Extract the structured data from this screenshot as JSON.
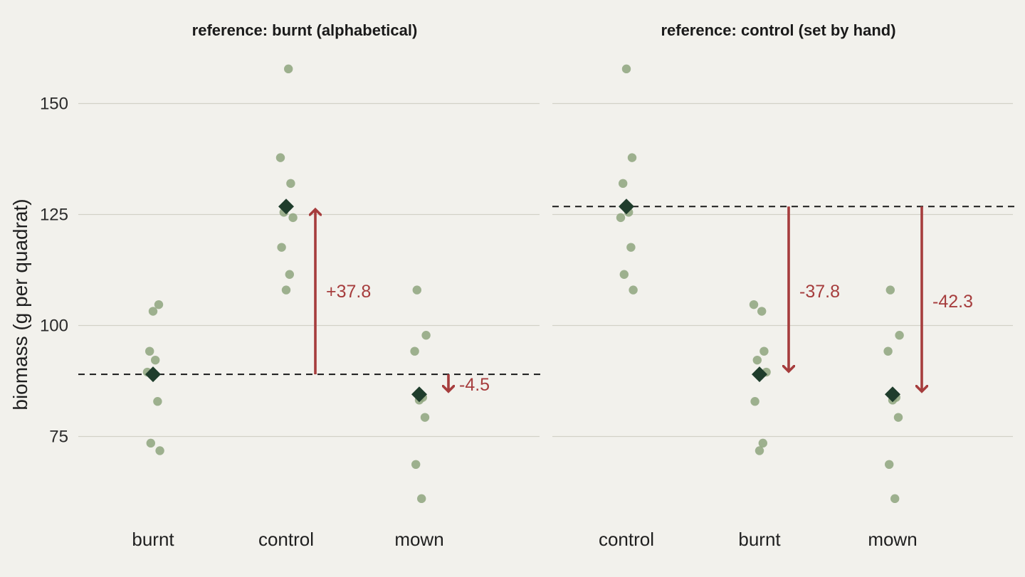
{
  "chart_data": {
    "type": "scatter",
    "ylabel": "biomass (g per quadrat)",
    "ylim": [
      57,
      162
    ],
    "yticks": [
      75,
      100,
      125,
      150
    ],
    "grid": "horizontal",
    "colors": {
      "background": "#f2f1ec",
      "gridline": "#d3d2c7",
      "point": "#8ea47e",
      "mean_marker": "#1f3d2c",
      "reference_line": "#1a1a1a",
      "arrow": "#a63d3d"
    },
    "observations": {
      "burnt": [
        103.2,
        104.7,
        94.2,
        92.2,
        89.5,
        82.9,
        73.5,
        71.8
      ],
      "control": [
        157.8,
        137.8,
        132.0,
        125.5,
        124.3,
        117.6,
        111.5,
        108.0
      ],
      "mown": [
        108.0,
        97.8,
        94.2,
        83.8,
        83.2,
        79.3,
        68.7,
        61.0
      ]
    },
    "means": {
      "burnt": 89.0,
      "control": 126.8,
      "mown": 84.5
    },
    "panels": [
      {
        "title": "reference: burnt (alphabetical)",
        "categories": [
          "burnt",
          "control",
          "mown"
        ],
        "reference": "burnt",
        "differences": [
          {
            "group": "control",
            "value": 37.8,
            "label": "+37.8"
          },
          {
            "group": "mown",
            "value": -4.5,
            "label": "-4.5"
          }
        ]
      },
      {
        "title": "reference: control (set by hand)",
        "categories": [
          "control",
          "burnt",
          "mown"
        ],
        "reference": "control",
        "differences": [
          {
            "group": "burnt",
            "value": -37.8,
            "label": "-37.8"
          },
          {
            "group": "mown",
            "value": -42.3,
            "label": "-42.3"
          }
        ]
      }
    ]
  }
}
